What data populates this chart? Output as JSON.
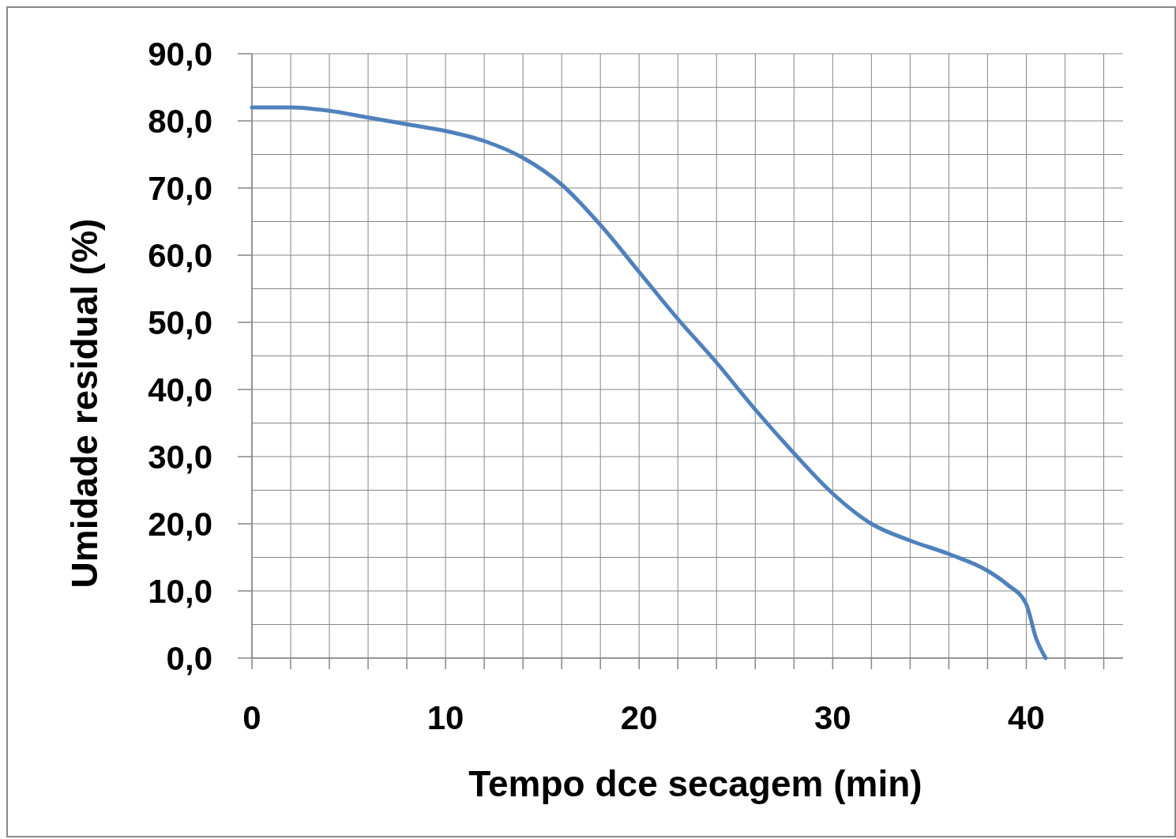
{
  "chart_data": {
    "type": "line",
    "xlabel": "Tempo dce secagem (min)",
    "ylabel": "Umidade residual (%)",
    "xlim": [
      0,
      45
    ],
    "ylim": [
      0,
      90
    ],
    "xticks": [
      0,
      {
        "value": 2,
        "label": null
      },
      {
        "value": 4,
        "label": null
      },
      {
        "value": 6,
        "label": null
      },
      {
        "value": 8,
        "label": null
      },
      10,
      {
        "value": 12,
        "label": null
      },
      {
        "value": 14,
        "label": null
      },
      {
        "value": 16,
        "label": null
      },
      {
        "value": 18,
        "label": null
      },
      20,
      {
        "value": 22,
        "label": null
      },
      {
        "value": 24,
        "label": null
      },
      {
        "value": 26,
        "label": null
      },
      {
        "value": 28,
        "label": null
      },
      30,
      {
        "value": 32,
        "label": null
      },
      {
        "value": 34,
        "label": null
      },
      {
        "value": 36,
        "label": null
      },
      {
        "value": 38,
        "label": null
      },
      40,
      {
        "value": 42,
        "label": null
      },
      {
        "value": 44,
        "label": null
      }
    ],
    "yticks": [
      {
        "value": 0,
        "label": "0,0"
      },
      {
        "value": 5,
        "label": null
      },
      {
        "value": 10,
        "label": "10,0"
      },
      {
        "value": 15,
        "label": null
      },
      {
        "value": 20,
        "label": "20,0"
      },
      {
        "value": 25,
        "label": null
      },
      {
        "value": 30,
        "label": "30,0"
      },
      {
        "value": 35,
        "label": null
      },
      {
        "value": 40,
        "label": "40,0"
      },
      {
        "value": 45,
        "label": null
      },
      {
        "value": 50,
        "label": "50,0"
      },
      {
        "value": 55,
        "label": null
      },
      {
        "value": 60,
        "label": "60,0"
      },
      {
        "value": 65,
        "label": null
      },
      {
        "value": 70,
        "label": "70,0"
      },
      {
        "value": 75,
        "label": null
      },
      {
        "value": 80,
        "label": "80,0"
      },
      {
        "value": 85,
        "label": null
      },
      {
        "value": 90,
        "label": "90,0"
      }
    ],
    "grid": true,
    "marker": "none",
    "line_style": "solid",
    "x": [
      0,
      2,
      4,
      6,
      8,
      10,
      12,
      14,
      16,
      18,
      20,
      22,
      24,
      26,
      28,
      30,
      32,
      34,
      36,
      38,
      39,
      40,
      40.5,
      41
    ],
    "series": [
      {
        "color": "#4f81bd",
        "values": [
          82,
          82,
          81.5,
          80.5,
          79.5,
          78.5,
          77,
          74.5,
          70.5,
          64.5,
          57.5,
          50.5,
          44,
          37,
          30.5,
          24.5,
          20,
          17.5,
          15.5,
          13,
          11,
          8,
          3,
          0
        ]
      }
    ]
  }
}
